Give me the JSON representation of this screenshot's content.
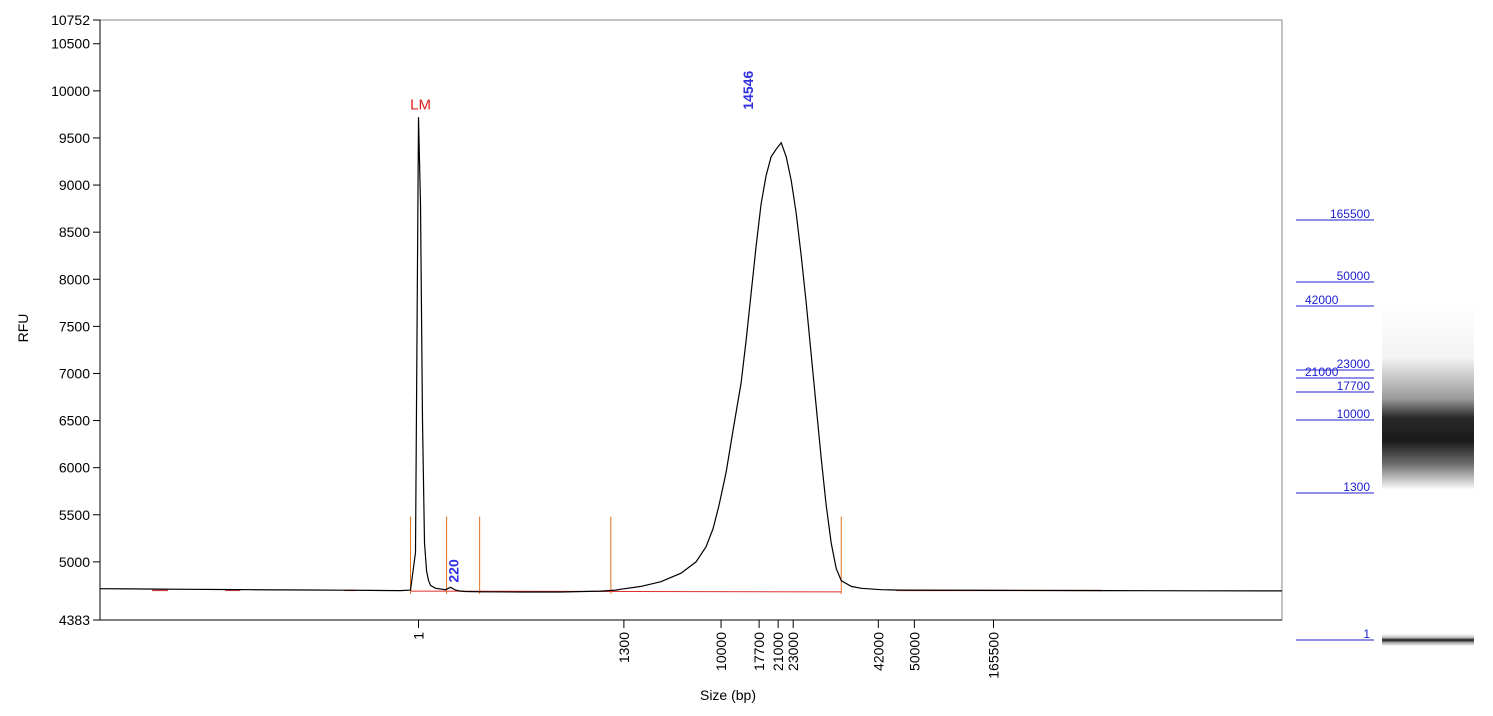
{
  "chart_data": {
    "type": "line",
    "xlabel": "Size (bp)",
    "ylabel": "RFU",
    "ylim": [
      4383,
      10752
    ],
    "yticks": [
      4383,
      5000,
      5500,
      6000,
      6500,
      7000,
      7500,
      8000,
      8500,
      9000,
      9500,
      10000,
      10500,
      10752
    ],
    "xticks": [
      "1",
      "1300",
      "10000",
      "17700",
      "21000",
      "23000",
      "42000",
      "50000",
      "165500"
    ],
    "annotations": [
      {
        "text": "LM",
        "color": "#e02020",
        "x": "1",
        "y": 9720
      },
      {
        "text": "220",
        "color": "#3030e0",
        "x": "220",
        "y": 4720
      },
      {
        "text": "14546",
        "color": "#3030e0",
        "x": "14546",
        "y": 9450
      }
    ],
    "series": [
      {
        "color": "#000000",
        "x": [
          0,
          30,
          60,
          90,
          120,
          150,
          180,
          210,
          240,
          270,
          300,
          310,
          315,
          318,
          320,
          322,
          324,
          326,
          328,
          330,
          335,
          345,
          350,
          355,
          360,
          365,
          380,
          420,
          460,
          500,
          515,
          520,
          540,
          560,
          580,
          595,
          605,
          612,
          618,
          625,
          632,
          640,
          645,
          650,
          655,
          660,
          665,
          670,
          675,
          680,
          685,
          690,
          695,
          700,
          705,
          710,
          715,
          720,
          725,
          730,
          735,
          740,
          750,
          760,
          780,
          800,
          900,
          1000,
          1100,
          1180
        ],
        "y": [
          4715,
          4713,
          4711,
          4709,
          4707,
          4705,
          4703,
          4701,
          4699,
          4697,
          4695,
          4700,
          5100,
          9720,
          8800,
          6500,
          5200,
          4900,
          4800,
          4750,
          4720,
          4705,
          4730,
          4700,
          4690,
          4685,
          4682,
          4680,
          4680,
          4690,
          4700,
          4710,
          4740,
          4790,
          4880,
          5000,
          5160,
          5350,
          5600,
          5950,
          6400,
          6900,
          7350,
          7850,
          8350,
          8800,
          9100,
          9300,
          9380,
          9450,
          9300,
          9050,
          8700,
          8250,
          7750,
          7200,
          6650,
          6100,
          5600,
          5200,
          4930,
          4800,
          4740,
          4720,
          4705,
          4700,
          4697,
          4695,
          4693,
          4692
        ]
      }
    ],
    "lane": {
      "markers": [
        "165500",
        "50000",
        "42000",
        "23000",
        "21000",
        "17700",
        "10000",
        "1300",
        "1"
      ]
    }
  }
}
